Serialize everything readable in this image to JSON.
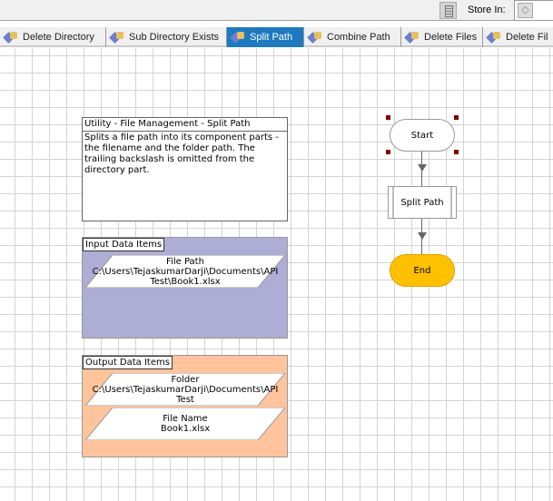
{
  "toolbar": {
    "store_in_label": "Store In:",
    "calculator_icon": "calculator-icon",
    "store_icon": "eraser-icon"
  },
  "tabs": [
    {
      "label": "Delete Directory"
    },
    {
      "label": "Sub Directory Exists"
    },
    {
      "label": "Split Path",
      "active": true
    },
    {
      "label": "Combine Path"
    },
    {
      "label": "Delete Files"
    },
    {
      "label": "Delete Fil"
    }
  ],
  "description": {
    "title": "Utility - File Management - Split Path",
    "body": "Splits a file path into its component parts - the filename and the folder path. The trailing backslash is omitted from the directory part."
  },
  "inputs": {
    "label": "Input Data Items",
    "color": "#adadd6",
    "items": [
      {
        "name": "File Path",
        "value": "C:\\Users\\TejaskumarDarji\\Documents\\API Test\\Book1.xlsx"
      }
    ]
  },
  "outputs": {
    "label": "Output Data Items",
    "color": "#ffc49c",
    "items": [
      {
        "name": "Folder",
        "value": "C:\\Users\\TejaskumarDarji\\Documents\\API Test"
      },
      {
        "name": "File Name",
        "value": "Book1.xlsx"
      }
    ]
  },
  "flow": {
    "start": "Start",
    "action": "Split Path",
    "end": "End",
    "end_color": "#ffc000"
  }
}
